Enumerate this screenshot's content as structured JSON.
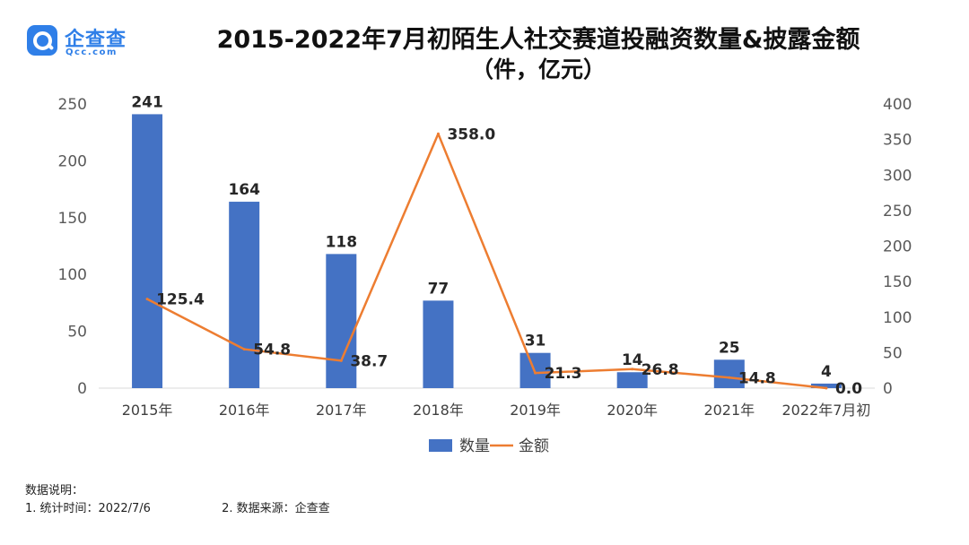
{
  "logo": {
    "cn": "企查查",
    "en": "Qcc.com"
  },
  "title": {
    "line1": "2015-2022年7月初陌生人社交赛道投融资数量&披露金额",
    "line2": "（件，亿元）"
  },
  "chart_data": {
    "type": "bar+line",
    "categories": [
      "2015年",
      "2016年",
      "2017年",
      "2018年",
      "2019年",
      "2020年",
      "2021年",
      "2022年7月初"
    ],
    "series": [
      {
        "name": "数量",
        "type": "bar",
        "axis": "left",
        "values": [
          241,
          164,
          118,
          77,
          31,
          14,
          25,
          4
        ],
        "color": "#4472C4"
      },
      {
        "name": "金额",
        "type": "line",
        "axis": "right",
        "values": [
          125.4,
          54.8,
          38.7,
          358.0,
          21.3,
          26.8,
          14.8,
          0.0
        ],
        "color": "#ED7D31"
      }
    ],
    "left_axis": {
      "ylim": [
        0,
        250
      ],
      "ticks": [
        "0",
        "50",
        "100",
        "150",
        "200",
        "250"
      ]
    },
    "right_axis": {
      "ylim": [
        0,
        400
      ],
      "ticks": [
        "0",
        "50",
        "100",
        "150",
        "200",
        "250",
        "300",
        "350",
        "400"
      ]
    },
    "bar_labels": [
      "241",
      "164",
      "118",
      "77",
      "31",
      "14",
      "25",
      "4"
    ],
    "line_labels": [
      "125.4",
      "54.8",
      "38.7",
      "358.0",
      "21.3",
      "26.8",
      "14.8",
      "0.0"
    ],
    "legend": [
      "数量",
      "金额"
    ],
    "legend_position": "bottom",
    "grid": false
  },
  "notes": {
    "heading": "数据说明：",
    "item1": "1. 统计时间：2022/7/6",
    "item2": "2. 数据来源：企查查"
  }
}
